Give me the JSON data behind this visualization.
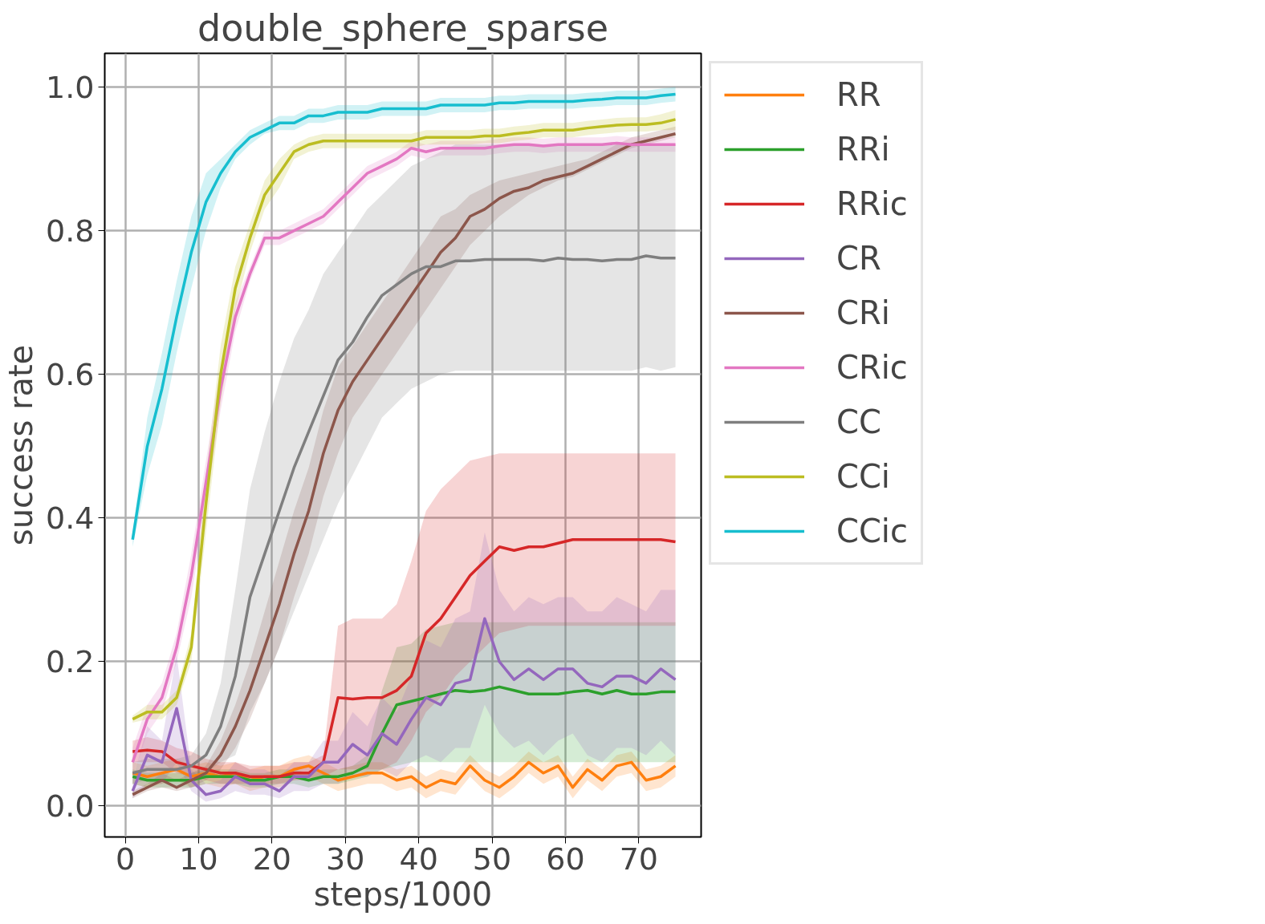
{
  "chart_data": {
    "type": "line",
    "title": "double_sphere_sparse",
    "xlabel": "steps/1000",
    "ylabel": "success rate",
    "x": [
      1,
      3,
      5,
      7,
      9,
      11,
      13,
      15,
      17,
      19,
      21,
      23,
      25,
      27,
      29,
      31,
      33,
      35,
      37,
      39,
      41,
      43,
      45,
      47,
      49,
      51,
      53,
      55,
      57,
      59,
      61,
      63,
      65,
      67,
      69,
      71,
      73,
      75
    ],
    "xlim": [
      -2.8,
      78.5
    ],
    "ylim": [
      -0.044,
      1.047
    ],
    "xticks": [
      0,
      10,
      20,
      30,
      40,
      50,
      60,
      70
    ],
    "yticks": [
      {
        "value": 0,
        "label": "0.0"
      },
      {
        "value": 0.2,
        "label": "0.2"
      },
      {
        "value": 0.4,
        "label": "0.4"
      },
      {
        "value": 0.6,
        "label": "0.6"
      },
      {
        "value": 0.8,
        "label": "0.8"
      },
      {
        "value": 1,
        "label": "1.0"
      }
    ],
    "grid": true,
    "legend": "right",
    "line_style": "solid",
    "series": [
      {
        "name": "RR",
        "color": "#ff7f0e",
        "values": [
          0.045,
          0.04,
          0.045,
          0.05,
          0.04,
          0.045,
          0.04,
          0.045,
          0.035,
          0.04,
          0.04,
          0.05,
          0.055,
          0.045,
          0.035,
          0.04,
          0.045,
          0.045,
          0.035,
          0.04,
          0.025,
          0.035,
          0.03,
          0.055,
          0.035,
          0.025,
          0.04,
          0.06,
          0.045,
          0.055,
          0.025,
          0.05,
          0.035,
          0.055,
          0.06,
          0.035,
          0.04,
          0.055
        ],
        "lower": [
          0.03,
          0.025,
          0.03,
          0.035,
          0.025,
          0.03,
          0.025,
          0.03,
          0.02,
          0.025,
          0.025,
          0.035,
          0.04,
          0.03,
          0.02,
          0.025,
          0.03,
          0.03,
          0.02,
          0.025,
          0.01,
          0.02,
          0.015,
          0.04,
          0.02,
          0.01,
          0.025,
          0.045,
          0.03,
          0.04,
          0.01,
          0.035,
          0.02,
          0.04,
          0.045,
          0.02,
          0.025,
          0.04
        ],
        "upper": [
          0.06,
          0.055,
          0.06,
          0.065,
          0.055,
          0.06,
          0.055,
          0.06,
          0.05,
          0.055,
          0.055,
          0.065,
          0.07,
          0.06,
          0.05,
          0.055,
          0.06,
          0.06,
          0.05,
          0.055,
          0.04,
          0.05,
          0.045,
          0.07,
          0.05,
          0.04,
          0.055,
          0.075,
          0.06,
          0.07,
          0.04,
          0.065,
          0.05,
          0.07,
          0.075,
          0.05,
          0.055,
          0.07
        ]
      },
      {
        "name": "RRi",
        "color": "#2ca02c",
        "values": [
          0.04,
          0.035,
          0.035,
          0.035,
          0.035,
          0.04,
          0.04,
          0.04,
          0.035,
          0.035,
          0.04,
          0.04,
          0.035,
          0.04,
          0.04,
          0.045,
          0.055,
          0.1,
          0.14,
          0.145,
          0.15,
          0.155,
          0.16,
          0.158,
          0.16,
          0.165,
          0.16,
          0.155,
          0.155,
          0.155,
          0.158,
          0.16,
          0.155,
          0.16,
          0.155,
          0.155,
          0.158,
          0.158
        ],
        "lower": [
          0.03,
          0.025,
          0.025,
          0.025,
          0.025,
          0.03,
          0.03,
          0.03,
          0.025,
          0.025,
          0.03,
          0.03,
          0.025,
          0.03,
          0.03,
          0.035,
          0.04,
          0.05,
          0.055,
          0.06,
          0.06,
          0.06,
          0.06,
          0.06,
          0.06,
          0.06,
          0.06,
          0.06,
          0.06,
          0.06,
          0.06,
          0.06,
          0.06,
          0.06,
          0.06,
          0.06,
          0.06,
          0.06
        ],
        "upper": [
          0.05,
          0.045,
          0.045,
          0.045,
          0.045,
          0.05,
          0.05,
          0.05,
          0.045,
          0.045,
          0.05,
          0.05,
          0.045,
          0.05,
          0.05,
          0.055,
          0.07,
          0.16,
          0.22,
          0.225,
          0.245,
          0.25,
          0.255,
          0.255,
          0.255,
          0.255,
          0.255,
          0.255,
          0.255,
          0.255,
          0.255,
          0.255,
          0.255,
          0.255,
          0.255,
          0.255,
          0.255,
          0.255
        ]
      },
      {
        "name": "RRic",
        "color": "#d62728",
        "values": [
          0.075,
          0.077,
          0.075,
          0.06,
          0.055,
          0.05,
          0.045,
          0.045,
          0.04,
          0.04,
          0.04,
          0.045,
          0.045,
          0.06,
          0.15,
          0.148,
          0.15,
          0.15,
          0.16,
          0.18,
          0.24,
          0.26,
          0.29,
          0.32,
          0.34,
          0.36,
          0.355,
          0.36,
          0.36,
          0.365,
          0.37,
          0.37,
          0.37,
          0.37,
          0.37,
          0.37,
          0.37,
          0.367
        ],
        "lower": [
          0.06,
          0.06,
          0.06,
          0.045,
          0.04,
          0.035,
          0.03,
          0.03,
          0.03,
          0.03,
          0.03,
          0.035,
          0.035,
          0.04,
          0.05,
          0.05,
          0.05,
          0.05,
          0.06,
          0.09,
          0.13,
          0.15,
          0.18,
          0.2,
          0.22,
          0.24,
          0.245,
          0.25,
          0.25,
          0.25,
          0.25,
          0.25,
          0.25,
          0.25,
          0.25,
          0.25,
          0.25,
          0.25
        ],
        "upper": [
          0.09,
          0.095,
          0.09,
          0.08,
          0.075,
          0.065,
          0.06,
          0.06,
          0.055,
          0.055,
          0.055,
          0.06,
          0.06,
          0.07,
          0.25,
          0.26,
          0.26,
          0.26,
          0.28,
          0.34,
          0.41,
          0.44,
          0.46,
          0.48,
          0.485,
          0.49,
          0.49,
          0.49,
          0.49,
          0.49,
          0.49,
          0.49,
          0.49,
          0.49,
          0.49,
          0.49,
          0.49,
          0.49
        ]
      },
      {
        "name": "CR",
        "color": "#9467bd",
        "values": [
          0.02,
          0.07,
          0.06,
          0.135,
          0.035,
          0.015,
          0.02,
          0.04,
          0.03,
          0.03,
          0.02,
          0.04,
          0.04,
          0.06,
          0.06,
          0.085,
          0.07,
          0.1,
          0.085,
          0.12,
          0.15,
          0.14,
          0.17,
          0.175,
          0.26,
          0.2,
          0.175,
          0.19,
          0.175,
          0.19,
          0.19,
          0.17,
          0.165,
          0.18,
          0.18,
          0.17,
          0.19,
          0.175
        ],
        "lower": [
          0.01,
          0.03,
          0.03,
          0.06,
          0.02,
          0.005,
          0.01,
          0.02,
          0.015,
          0.015,
          0.01,
          0.02,
          0.02,
          0.03,
          0.03,
          0.04,
          0.04,
          0.05,
          0.04,
          0.06,
          0.07,
          0.06,
          0.08,
          0.08,
          0.14,
          0.1,
          0.08,
          0.09,
          0.07,
          0.09,
          0.1,
          0.07,
          0.06,
          0.08,
          0.08,
          0.07,
          0.09,
          0.07
        ],
        "upper": [
          0.035,
          0.11,
          0.09,
          0.21,
          0.05,
          0.03,
          0.035,
          0.06,
          0.05,
          0.05,
          0.04,
          0.06,
          0.06,
          0.09,
          0.09,
          0.13,
          0.11,
          0.15,
          0.13,
          0.18,
          0.23,
          0.22,
          0.26,
          0.27,
          0.38,
          0.3,
          0.27,
          0.29,
          0.28,
          0.29,
          0.29,
          0.27,
          0.27,
          0.29,
          0.28,
          0.27,
          0.3,
          0.3
        ]
      },
      {
        "name": "CRi",
        "color": "#8c564b",
        "values": [
          0.015,
          0.025,
          0.035,
          0.025,
          0.035,
          0.045,
          0.07,
          0.11,
          0.16,
          0.22,
          0.28,
          0.35,
          0.41,
          0.49,
          0.55,
          0.59,
          0.62,
          0.65,
          0.68,
          0.71,
          0.74,
          0.77,
          0.79,
          0.82,
          0.83,
          0.845,
          0.855,
          0.86,
          0.87,
          0.875,
          0.88,
          0.89,
          0.9,
          0.91,
          0.92,
          0.925,
          0.93,
          0.935
        ],
        "lower": [
          0.01,
          0.02,
          0.025,
          0.02,
          0.025,
          0.035,
          0.05,
          0.08,
          0.12,
          0.17,
          0.22,
          0.29,
          0.35,
          0.43,
          0.49,
          0.54,
          0.57,
          0.6,
          0.63,
          0.66,
          0.69,
          0.72,
          0.75,
          0.78,
          0.8,
          0.82,
          0.835,
          0.85,
          0.86,
          0.87,
          0.875,
          0.885,
          0.895,
          0.905,
          0.915,
          0.92,
          0.925,
          0.93
        ],
        "upper": [
          0.02,
          0.03,
          0.045,
          0.035,
          0.045,
          0.055,
          0.09,
          0.14,
          0.2,
          0.27,
          0.34,
          0.41,
          0.47,
          0.55,
          0.61,
          0.64,
          0.67,
          0.7,
          0.73,
          0.76,
          0.79,
          0.82,
          0.83,
          0.85,
          0.86,
          0.87,
          0.875,
          0.88,
          0.885,
          0.89,
          0.895,
          0.9,
          0.91,
          0.92,
          0.93,
          0.935,
          0.94,
          0.945
        ]
      },
      {
        "name": "CRic",
        "color": "#e377c2",
        "values": [
          0.06,
          0.12,
          0.15,
          0.22,
          0.32,
          0.45,
          0.58,
          0.68,
          0.74,
          0.79,
          0.79,
          0.8,
          0.81,
          0.82,
          0.84,
          0.86,
          0.88,
          0.89,
          0.9,
          0.915,
          0.91,
          0.915,
          0.915,
          0.915,
          0.915,
          0.918,
          0.92,
          0.92,
          0.918,
          0.92,
          0.92,
          0.92,
          0.92,
          0.922,
          0.92,
          0.92,
          0.92,
          0.92
        ],
        "lower": [
          0.04,
          0.1,
          0.13,
          0.2,
          0.29,
          0.42,
          0.55,
          0.66,
          0.73,
          0.78,
          0.78,
          0.79,
          0.8,
          0.81,
          0.83,
          0.85,
          0.87,
          0.88,
          0.89,
          0.905,
          0.9,
          0.905,
          0.905,
          0.905,
          0.905,
          0.908,
          0.91,
          0.91,
          0.908,
          0.91,
          0.91,
          0.91,
          0.91,
          0.912,
          0.91,
          0.91,
          0.91,
          0.91
        ],
        "upper": [
          0.08,
          0.14,
          0.17,
          0.24,
          0.35,
          0.48,
          0.61,
          0.7,
          0.75,
          0.8,
          0.8,
          0.81,
          0.82,
          0.83,
          0.85,
          0.87,
          0.89,
          0.9,
          0.91,
          0.925,
          0.92,
          0.925,
          0.925,
          0.925,
          0.925,
          0.928,
          0.93,
          0.93,
          0.928,
          0.93,
          0.93,
          0.93,
          0.93,
          0.932,
          0.93,
          0.93,
          0.93,
          0.93
        ]
      },
      {
        "name": "CC",
        "color": "#7f7f7f",
        "values": [
          0.045,
          0.05,
          0.05,
          0.05,
          0.055,
          0.07,
          0.11,
          0.18,
          0.29,
          0.35,
          0.41,
          0.47,
          0.52,
          0.57,
          0.62,
          0.645,
          0.68,
          0.71,
          0.725,
          0.74,
          0.75,
          0.75,
          0.758,
          0.758,
          0.76,
          0.76,
          0.76,
          0.76,
          0.758,
          0.762,
          0.76,
          0.76,
          0.758,
          0.76,
          0.76,
          0.765,
          0.762,
          0.762
        ],
        "lower": [
          0.03,
          0.035,
          0.035,
          0.035,
          0.04,
          0.045,
          0.06,
          0.07,
          0.13,
          0.17,
          0.22,
          0.27,
          0.32,
          0.37,
          0.42,
          0.46,
          0.5,
          0.54,
          0.56,
          0.58,
          0.59,
          0.6,
          0.605,
          0.605,
          0.605,
          0.605,
          0.605,
          0.605,
          0.605,
          0.605,
          0.605,
          0.605,
          0.605,
          0.605,
          0.605,
          0.61,
          0.605,
          0.61
        ],
        "upper": [
          0.06,
          0.065,
          0.065,
          0.065,
          0.07,
          0.1,
          0.17,
          0.3,
          0.44,
          0.52,
          0.59,
          0.65,
          0.69,
          0.74,
          0.77,
          0.8,
          0.83,
          0.85,
          0.87,
          0.89,
          0.9,
          0.91,
          0.92,
          0.92,
          0.92,
          0.92,
          0.92,
          0.92,
          0.92,
          0.92,
          0.92,
          0.92,
          0.92,
          0.92,
          0.92,
          0.92,
          0.92,
          0.92
        ]
      },
      {
        "name": "CCi",
        "color": "#bcbd22",
        "values": [
          0.12,
          0.13,
          0.13,
          0.15,
          0.22,
          0.42,
          0.6,
          0.72,
          0.79,
          0.85,
          0.88,
          0.91,
          0.92,
          0.925,
          0.925,
          0.925,
          0.925,
          0.925,
          0.925,
          0.925,
          0.93,
          0.93,
          0.93,
          0.93,
          0.932,
          0.932,
          0.935,
          0.937,
          0.94,
          0.94,
          0.94,
          0.943,
          0.945,
          0.947,
          0.948,
          0.948,
          0.95,
          0.955
        ],
        "lower": [
          0.115,
          0.12,
          0.12,
          0.14,
          0.2,
          0.38,
          0.56,
          0.69,
          0.77,
          0.83,
          0.86,
          0.9,
          0.91,
          0.915,
          0.915,
          0.915,
          0.915,
          0.915,
          0.915,
          0.915,
          0.92,
          0.92,
          0.92,
          0.92,
          0.922,
          0.922,
          0.925,
          0.927,
          0.93,
          0.93,
          0.93,
          0.933,
          0.935,
          0.937,
          0.938,
          0.938,
          0.94,
          0.94
        ],
        "upper": [
          0.125,
          0.14,
          0.14,
          0.16,
          0.24,
          0.46,
          0.64,
          0.75,
          0.81,
          0.87,
          0.9,
          0.92,
          0.93,
          0.935,
          0.935,
          0.935,
          0.935,
          0.935,
          0.935,
          0.935,
          0.94,
          0.94,
          0.94,
          0.94,
          0.942,
          0.942,
          0.945,
          0.947,
          0.95,
          0.95,
          0.95,
          0.953,
          0.955,
          0.957,
          0.958,
          0.958,
          0.962,
          0.968
        ]
      },
      {
        "name": "CCic",
        "color": "#17becf",
        "values": [
          0.37,
          0.5,
          0.58,
          0.68,
          0.77,
          0.84,
          0.88,
          0.91,
          0.93,
          0.94,
          0.95,
          0.95,
          0.96,
          0.96,
          0.965,
          0.965,
          0.965,
          0.97,
          0.97,
          0.97,
          0.97,
          0.975,
          0.975,
          0.975,
          0.975,
          0.978,
          0.978,
          0.98,
          0.98,
          0.98,
          0.98,
          0.982,
          0.983,
          0.985,
          0.985,
          0.985,
          0.988,
          0.99
        ],
        "lower": [
          0.36,
          0.46,
          0.53,
          0.63,
          0.72,
          0.8,
          0.86,
          0.9,
          0.92,
          0.935,
          0.94,
          0.94,
          0.95,
          0.95,
          0.955,
          0.955,
          0.955,
          0.96,
          0.96,
          0.96,
          0.96,
          0.965,
          0.965,
          0.965,
          0.965,
          0.968,
          0.968,
          0.97,
          0.97,
          0.97,
          0.97,
          0.972,
          0.973,
          0.975,
          0.975,
          0.975,
          0.978,
          0.98
        ],
        "upper": [
          0.38,
          0.54,
          0.63,
          0.73,
          0.82,
          0.88,
          0.9,
          0.92,
          0.94,
          0.95,
          0.96,
          0.96,
          0.97,
          0.97,
          0.975,
          0.975,
          0.975,
          0.98,
          0.98,
          0.98,
          0.98,
          0.985,
          0.985,
          0.985,
          0.985,
          0.988,
          0.988,
          0.99,
          0.99,
          0.99,
          0.99,
          0.992,
          0.993,
          0.995,
          0.995,
          0.995,
          0.998,
          1.0
        ]
      }
    ]
  }
}
